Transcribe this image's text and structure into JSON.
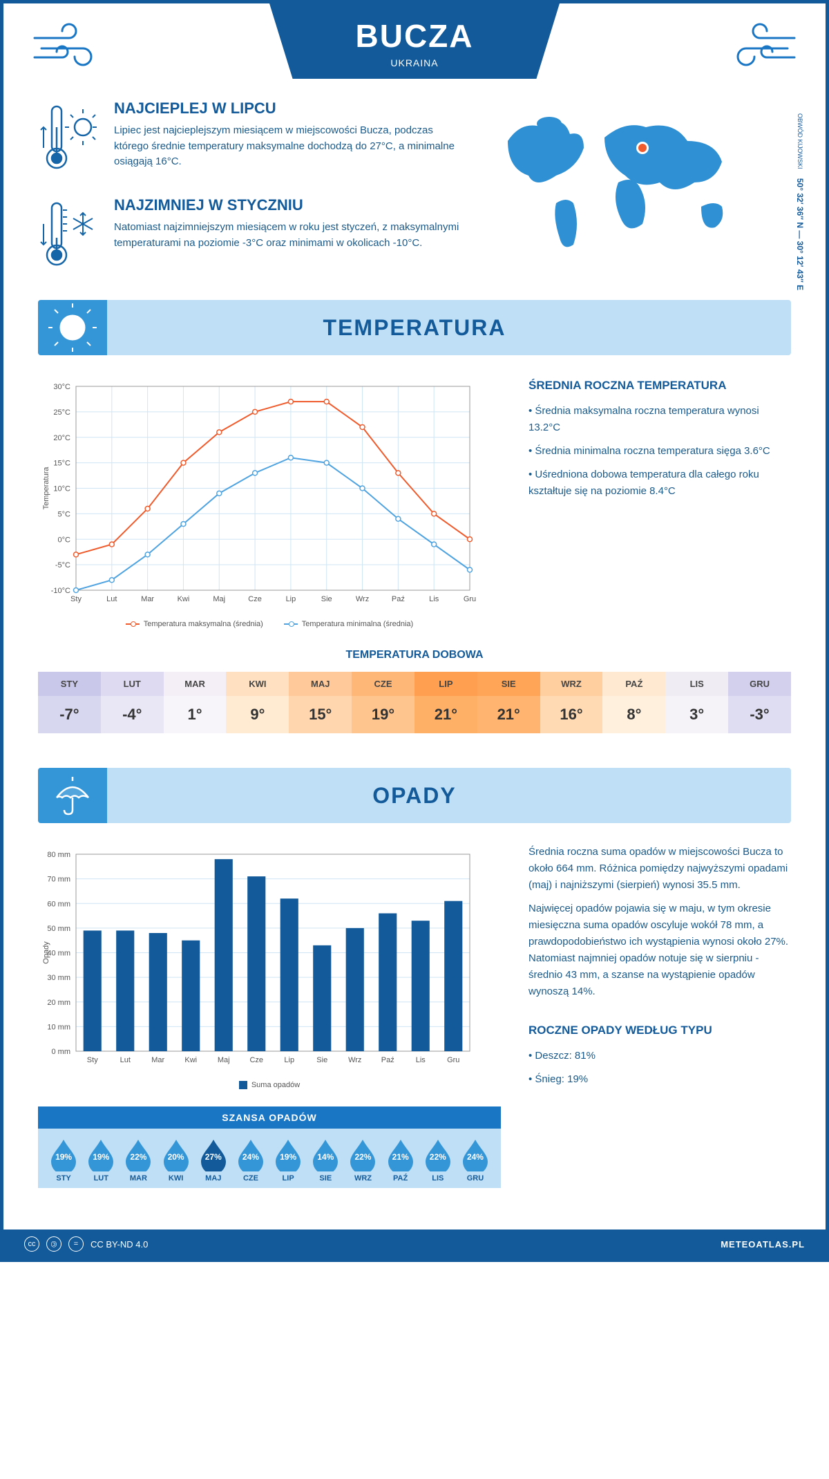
{
  "header": {
    "title": "BUCZA",
    "subtitle": "UKRAINA"
  },
  "coords": {
    "text": "50° 32′ 36″ N — 30° 12′ 43″ E",
    "region": "OBWÓD KIJOWSKI"
  },
  "hot": {
    "title": "NAJCIEPLEJ W LIPCU",
    "text": "Lipiec jest najcieplejszym miesiącem w miejscowości Bucza, podczas którego średnie temperatury maksymalne dochodzą do 27°C, a minimalne osiągają 16°C."
  },
  "cold": {
    "title": "NAJZIMNIEJ W STYCZNIU",
    "text": "Natomiast najzimniejszym miesiącem w roku jest styczeń, z maksymalnymi temperaturami na poziomie -3°C oraz minimami w okolicach -10°C."
  },
  "temp_section": {
    "title": "TEMPERATURA"
  },
  "temp_chart": {
    "y_label": "Temperatura",
    "months": [
      "Sty",
      "Lut",
      "Mar",
      "Kwi",
      "Maj",
      "Cze",
      "Lip",
      "Sie",
      "Wrz",
      "Paź",
      "Lis",
      "Gru"
    ],
    "y_min": -10,
    "y_max": 30,
    "y_step": 5,
    "max_line": {
      "label": "Temperatura maksymalna (średnia)",
      "color": "#ef5b2c",
      "values": [
        -3,
        -1,
        6,
        15,
        21,
        25,
        27,
        27,
        22,
        13,
        5,
        0
      ]
    },
    "min_line": {
      "label": "Temperatura minimalna (średnia)",
      "color": "#4fa3e0",
      "values": [
        -10,
        -8,
        -3,
        3,
        9,
        13,
        16,
        15,
        10,
        4,
        -1,
        -6
      ]
    },
    "grid_color": "#cfe5f5",
    "axis_color": "#888"
  },
  "temp_side": {
    "title": "ŚREDNIA ROCZNA TEMPERATURA",
    "b1": "Średnia maksymalna roczna temperatura wynosi 13.2°C",
    "b2": "Średnia minimalna roczna temperatura sięga 3.6°C",
    "b3": "Uśredniona dobowa temperatura dla całego roku kształtuje się na poziomie 8.4°C"
  },
  "daily": {
    "title": "TEMPERATURA DOBOWA",
    "months": [
      "STY",
      "LUT",
      "MAR",
      "KWI",
      "MAJ",
      "CZE",
      "LIP",
      "SIE",
      "WRZ",
      "PAŹ",
      "LIS",
      "GRU"
    ],
    "values": [
      "-7°",
      "-4°",
      "1°",
      "9°",
      "15°",
      "19°",
      "21°",
      "21°",
      "16°",
      "8°",
      "3°",
      "-3°"
    ],
    "bg_top": [
      "#c9c8ea",
      "#dedaf1",
      "#f4eff6",
      "#ffe1c2",
      "#ffc999",
      "#ffb778",
      "#ff9f4f",
      "#ffa557",
      "#ffcf9f",
      "#ffe9d0",
      "#f0ecf4",
      "#d2d0ec"
    ],
    "bg_bot": [
      "#d8d7f0",
      "#e9e6f6",
      "#f8f5fa",
      "#ffead2",
      "#ffd6ae",
      "#ffc58f",
      "#ffb067",
      "#ffb56f",
      "#ffdab2",
      "#ffefdd",
      "#f5f2f8",
      "#dfddf1"
    ]
  },
  "precip_section": {
    "title": "OPADY"
  },
  "precip_chart": {
    "y_label": "Opady",
    "months": [
      "Sty",
      "Lut",
      "Mar",
      "Kwi",
      "Maj",
      "Cze",
      "Lip",
      "Sie",
      "Wrz",
      "Paź",
      "Lis",
      "Gru"
    ],
    "y_min": 0,
    "y_max": 80,
    "y_step": 10,
    "values": [
      49,
      49,
      48,
      45,
      78,
      71,
      62,
      43,
      50,
      56,
      53,
      61
    ],
    "bar_color": "#135a9a",
    "grid_color": "#cfe5f5",
    "legend": "Suma opadów"
  },
  "precip_side": {
    "p1": "Średnia roczna suma opadów w miejscowości Bucza to około 664 mm. Różnica pomiędzy najwyższymi opadami (maj) i najniższymi (sierpień) wynosi 35.5 mm.",
    "p2": "Najwięcej opadów pojawia się w maju, w tym okresie miesięczna suma opadów oscyluje wokół 78 mm, a prawdopodobieństwo ich wystąpienia wynosi około 27%. Natomiast najmniej opadów notuje się w sierpniu - średnio 43 mm, a szanse na wystąpienie opadów wynoszą 14%.",
    "type_title": "ROCZNE OPADY WEDŁUG TYPU",
    "b1": "Deszcz: 81%",
    "b2": "Śnieg: 19%"
  },
  "rain_chance": {
    "title": "SZANSA OPADÓW",
    "months": [
      "STY",
      "LUT",
      "MAR",
      "KWI",
      "MAJ",
      "CZE",
      "LIP",
      "SIE",
      "WRZ",
      "PAŹ",
      "LIS",
      "GRU"
    ],
    "pct": [
      "19%",
      "19%",
      "22%",
      "20%",
      "27%",
      "24%",
      "19%",
      "14%",
      "22%",
      "21%",
      "22%",
      "24%"
    ],
    "max_index": 4,
    "drop_color": "#3596d7",
    "drop_max_color": "#135a9a"
  },
  "footer": {
    "license": "CC BY-ND 4.0",
    "site": "METEOATLAS.PL"
  }
}
